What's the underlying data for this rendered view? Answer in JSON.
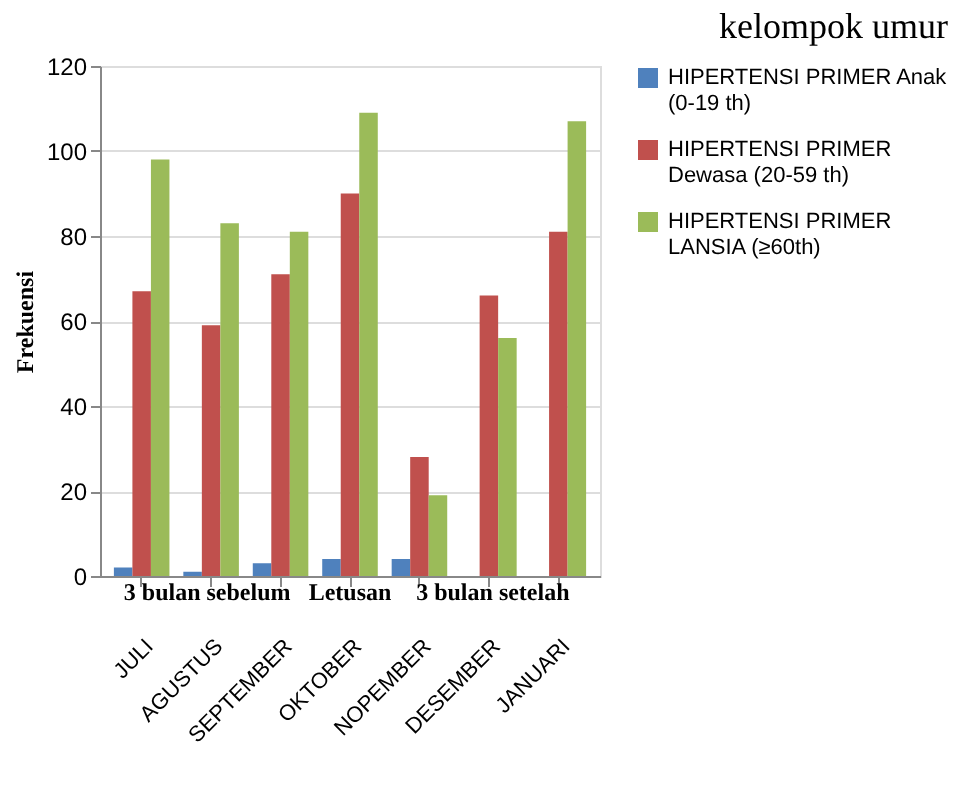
{
  "chart_data": {
    "type": "bar",
    "title": "kelompok umur",
    "ylabel": "Frekuensi",
    "categories": [
      "JULI",
      "AGUSTUS",
      "SEPTEMBER",
      "OKTOBER",
      "NOPEMBER",
      "DESEMBER",
      "JANUARI"
    ],
    "series": [
      {
        "name": "HIPERTENSI PRIMER Anak (0-19 th)",
        "color": "#4f81bd",
        "values": [
          2,
          1,
          3,
          4,
          4,
          0,
          0
        ]
      },
      {
        "name": "HIPERTENSI PRIMER Dewasa (20-59 th)",
        "color": "#c0504d",
        "values": [
          67,
          59,
          71,
          90,
          28,
          66,
          81
        ]
      },
      {
        "name": "HIPERTENSI PRIMER LANSIA (≥60th)",
        "color": "#9bbb59",
        "values": [
          98,
          83,
          81,
          109,
          19,
          56,
          107
        ]
      }
    ],
    "annotations": [
      "3 bulan sebelum",
      "Letusan",
      "3 bulan setelah"
    ],
    "ylim": [
      0,
      120
    ],
    "yticks": [
      0,
      20,
      40,
      60,
      80,
      100,
      120
    ],
    "grid": "y",
    "legend": "right"
  }
}
